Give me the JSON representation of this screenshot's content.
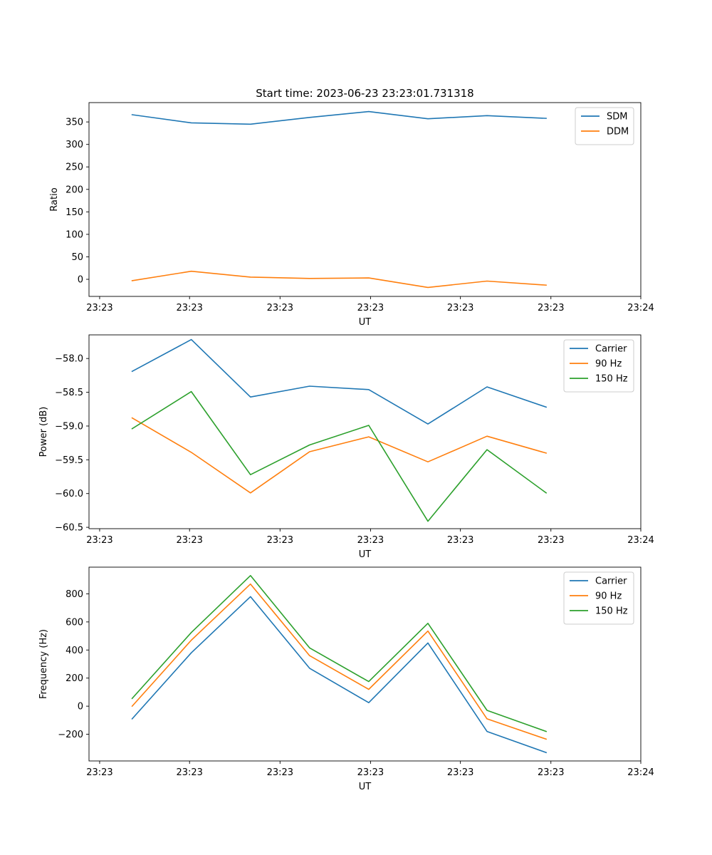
{
  "colors": {
    "blue": "#1f77b4",
    "orange": "#ff7f0e",
    "green": "#2ca02c"
  },
  "chart_data": [
    {
      "type": "line",
      "title": "Start time: 2023-06-23 23:23:01.731318",
      "xlabel": "UT",
      "ylabel": "Ratio",
      "x_tick_labels": [
        "23:23",
        "23:23",
        "23:23",
        "23:23",
        "23:23",
        "23:23",
        "23:24"
      ],
      "ylim": [
        -38,
        393
      ],
      "y_ticks": [
        0,
        50,
        100,
        150,
        200,
        250,
        300,
        350
      ],
      "legend_position": "top-right",
      "x": [
        1,
        2,
        3,
        4,
        5,
        6,
        7,
        8
      ],
      "series": [
        {
          "name": "SDM",
          "color": "#1f77b4",
          "values": [
            366,
            348,
            345,
            360,
            373,
            357,
            364,
            358
          ]
        },
        {
          "name": "DDM",
          "color": "#ff7f0e",
          "values": [
            -3,
            18,
            5,
            2,
            3,
            -18,
            -4,
            -13
          ]
        }
      ]
    },
    {
      "type": "line",
      "title": "",
      "xlabel": "UT",
      "ylabel": "Power (dB)",
      "x_tick_labels": [
        "23:23",
        "23:23",
        "23:23",
        "23:23",
        "23:23",
        "23:23",
        "23:24"
      ],
      "ylim": [
        -60.52,
        -57.65
      ],
      "y_ticks": [
        -60.5,
        -60.0,
        -59.5,
        -59.0,
        -58.5,
        -58.0
      ],
      "y_tick_labels": [
        "−60.5",
        "−60.0",
        "−59.5",
        "−59.0",
        "−58.5",
        "−58.0"
      ],
      "legend_position": "top-right",
      "x": [
        1,
        2,
        3,
        4,
        5,
        6,
        7,
        8
      ],
      "series": [
        {
          "name": "Carrier",
          "color": "#1f77b4",
          "values": [
            -58.19,
            -57.72,
            -58.57,
            -58.41,
            -58.46,
            -58.97,
            -58.42,
            -58.72
          ]
        },
        {
          "name": "90 Hz",
          "color": "#ff7f0e",
          "values": [
            -58.88,
            -59.39,
            -59.99,
            -59.38,
            -59.16,
            -59.53,
            -59.15,
            -59.4
          ]
        },
        {
          "name": "150 Hz",
          "color": "#2ca02c",
          "values": [
            -59.04,
            -58.49,
            -59.72,
            -59.28,
            -58.99,
            -60.41,
            -59.35,
            -59.99
          ]
        }
      ]
    },
    {
      "type": "line",
      "title": "",
      "xlabel": "UT",
      "ylabel": "Frequency (Hz)",
      "x_tick_labels": [
        "23:23",
        "23:23",
        "23:23",
        "23:23",
        "23:23",
        "23:23",
        "23:24"
      ],
      "ylim": [
        -390,
        990
      ],
      "y_ticks": [
        -200,
        0,
        200,
        400,
        600,
        800
      ],
      "y_tick_labels": [
        "−200",
        "0",
        "200",
        "400",
        "600",
        "800"
      ],
      "legend_position": "top-right",
      "x": [
        1,
        2,
        3,
        4,
        5,
        6,
        7,
        8
      ],
      "series": [
        {
          "name": "Carrier",
          "color": "#1f77b4",
          "values": [
            -90,
            380,
            780,
            270,
            25,
            450,
            -180,
            -330
          ]
        },
        {
          "name": "90 Hz",
          "color": "#ff7f0e",
          "values": [
            0,
            470,
            870,
            360,
            120,
            535,
            -90,
            -235
          ]
        },
        {
          "name": "150 Hz",
          "color": "#2ca02c",
          "values": [
            55,
            525,
            930,
            415,
            175,
            590,
            -30,
            -180
          ]
        }
      ]
    }
  ]
}
